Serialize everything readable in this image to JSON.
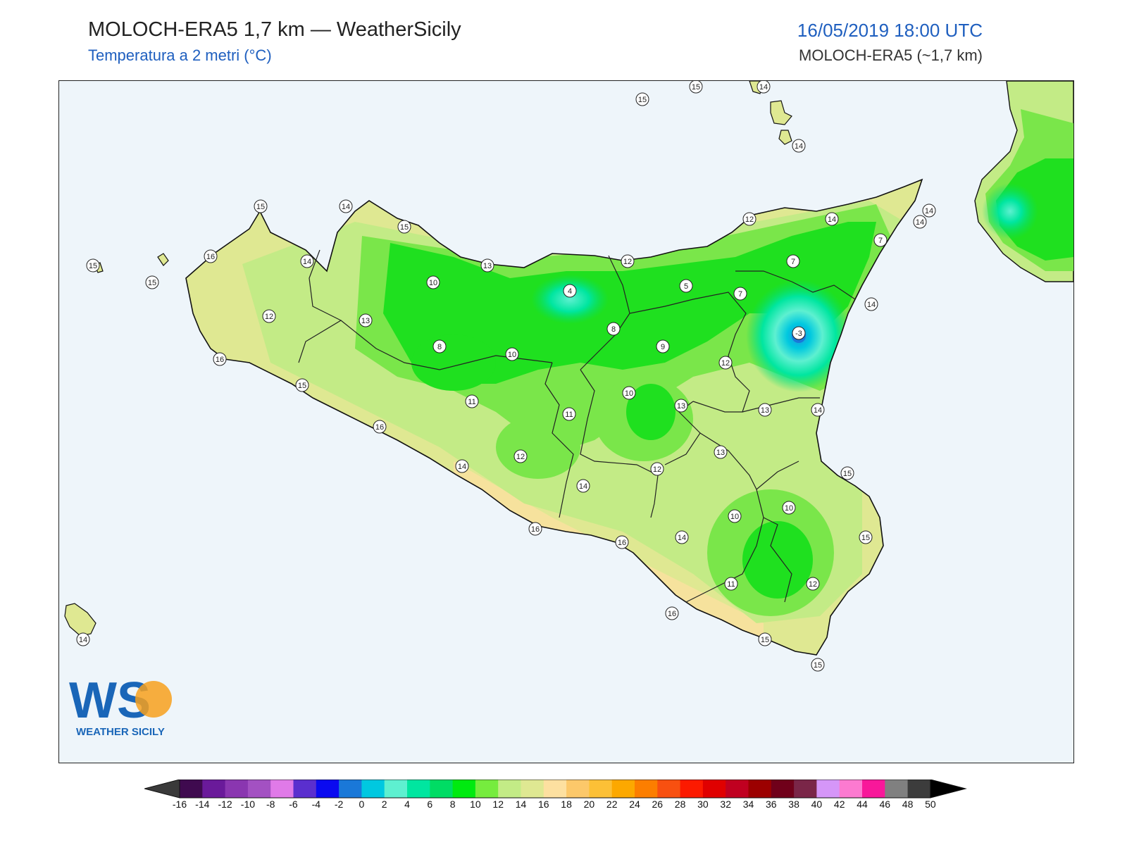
{
  "header": {
    "title": "MOLOCH-ERA5 1,7 km — WeatherSicily",
    "subtitle": "Temperatura a 2 metri (°C)",
    "datetime": "16/05/2019 18:00 UTC",
    "model": "MOLOCH-ERA5 (~1,7 km)"
  },
  "logo": {
    "letters": "WS",
    "name": "WEATHER SICILY"
  },
  "colors": {
    "sea": "#eef5fa",
    "coast_warm": "#dfe892",
    "land_mid": "#c3eb86",
    "land_cool": "#7ae64a",
    "land_cold": "#1fe01f",
    "peak": "#00e6a0",
    "etna_core": "#1f8fe0"
  },
  "stations": [
    {
      "label": "15"
    },
    {
      "label": "15"
    },
    {
      "label": "14"
    },
    {
      "label": "14"
    },
    {
      "label": "15"
    },
    {
      "label": "14"
    },
    {
      "label": "15"
    },
    {
      "label": "16"
    },
    {
      "label": "14"
    },
    {
      "label": "15"
    },
    {
      "label": "15"
    },
    {
      "label": "14"
    },
    {
      "label": "12"
    },
    {
      "label": "14"
    },
    {
      "label": "14"
    },
    {
      "label": "7"
    },
    {
      "label": "13"
    },
    {
      "label": "12"
    },
    {
      "label": "10"
    },
    {
      "label": "4"
    },
    {
      "label": "7"
    },
    {
      "label": "5"
    },
    {
      "label": "7"
    },
    {
      "label": "14"
    },
    {
      "label": "12"
    },
    {
      "label": "13"
    },
    {
      "label": "8"
    },
    {
      "label": "-3"
    },
    {
      "label": "8"
    },
    {
      "label": "10"
    },
    {
      "label": "9"
    },
    {
      "label": "16"
    },
    {
      "label": "12"
    },
    {
      "label": "15"
    },
    {
      "label": "10"
    },
    {
      "label": "11"
    },
    {
      "label": "13"
    },
    {
      "label": "11"
    },
    {
      "label": "13"
    },
    {
      "label": "14"
    },
    {
      "label": "16"
    },
    {
      "label": "13"
    },
    {
      "label": "12"
    },
    {
      "label": "14"
    },
    {
      "label": "12"
    },
    {
      "label": "15"
    },
    {
      "label": "14"
    },
    {
      "label": "10"
    },
    {
      "label": "10"
    },
    {
      "label": "16"
    },
    {
      "label": "16"
    },
    {
      "label": "14"
    },
    {
      "label": "15"
    },
    {
      "label": "11"
    },
    {
      "label": "12"
    },
    {
      "label": "16"
    },
    {
      "label": "14"
    },
    {
      "label": "15"
    },
    {
      "label": "15"
    }
  ],
  "colorbar": {
    "colors": [
      "#3f0a4f",
      "#6a1a9a",
      "#8a36b0",
      "#a351c2",
      "#e07ae8",
      "#5a2fce",
      "#0a0af0",
      "#1a78d8",
      "#00c8e0",
      "#5ef0d0",
      "#00e6a0",
      "#00dc64",
      "#00ea10",
      "#76ec3e",
      "#c3eb86",
      "#dfe892",
      "#fde0a0",
      "#fcc86a",
      "#fcc036",
      "#fca800",
      "#fc7e00",
      "#f85010",
      "#fc1a00",
      "#e00000",
      "#c00020",
      "#9c0000",
      "#70001a",
      "#7a2648",
      "#d596f8",
      "#fc7ad0",
      "#f8189a",
      "#808080",
      "#3c3c3c"
    ],
    "ticks": [
      "-16",
      "-14",
      "-12",
      "-10",
      "-8",
      "-6",
      "-4",
      "-2",
      "0",
      "2",
      "4",
      "6",
      "8",
      "10",
      "12",
      "14",
      "16",
      "18",
      "20",
      "22",
      "24",
      "26",
      "28",
      "30",
      "32",
      "34",
      "36",
      "38",
      "40",
      "42",
      "44",
      "46",
      "48",
      "50"
    ]
  }
}
